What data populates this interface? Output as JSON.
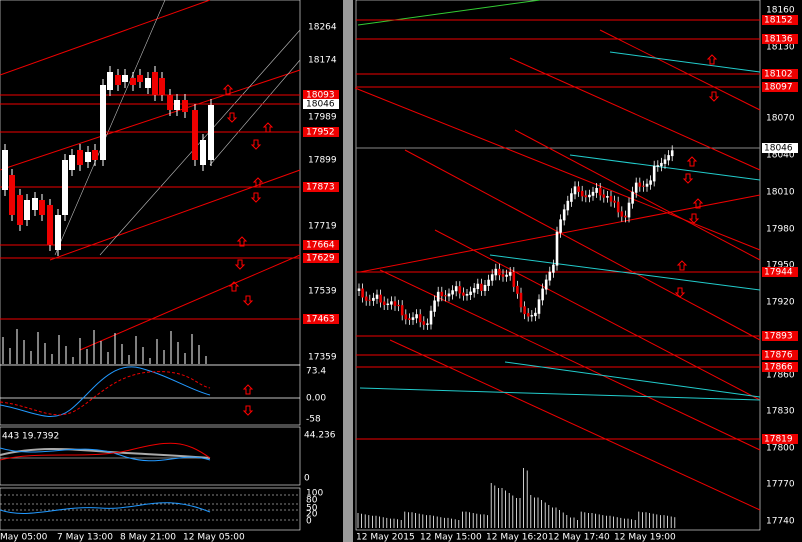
{
  "left": {
    "price_axis": [
      "18264",
      "18174",
      "17989",
      "17899",
      "17719",
      "17539",
      "17359"
    ],
    "price_boxes": [
      "18093",
      "18046",
      "17952",
      "17873",
      "17664",
      "17629",
      "17463"
    ],
    "time_axis": [
      "May 05:00",
      "7 May 13:00",
      "8 May 21:00",
      "12 May 05:00"
    ],
    "osc1_axis": [
      "73.4",
      "0.00",
      "-58"
    ],
    "osc2_caption": "443 19.7392",
    "osc2_axis": [
      "44.236",
      "0"
    ],
    "osc3_axis": [
      "100",
      "80",
      "50",
      "20",
      "0"
    ]
  },
  "right": {
    "price_axis": [
      "18160",
      "18130",
      "18070",
      "18040",
      "18010",
      "17980",
      "17950",
      "17920",
      "17860",
      "17830",
      "17800",
      "17770",
      "17740"
    ],
    "price_boxes": [
      "18152",
      "18136",
      "18102",
      "18097",
      "18046",
      "17944",
      "17893",
      "17876",
      "17866",
      "17819"
    ],
    "time_axis": [
      "12 May 2015",
      "12 May 15:00",
      "12 May 16:20",
      "12 May 17:40",
      "12 May 19:00"
    ]
  }
}
